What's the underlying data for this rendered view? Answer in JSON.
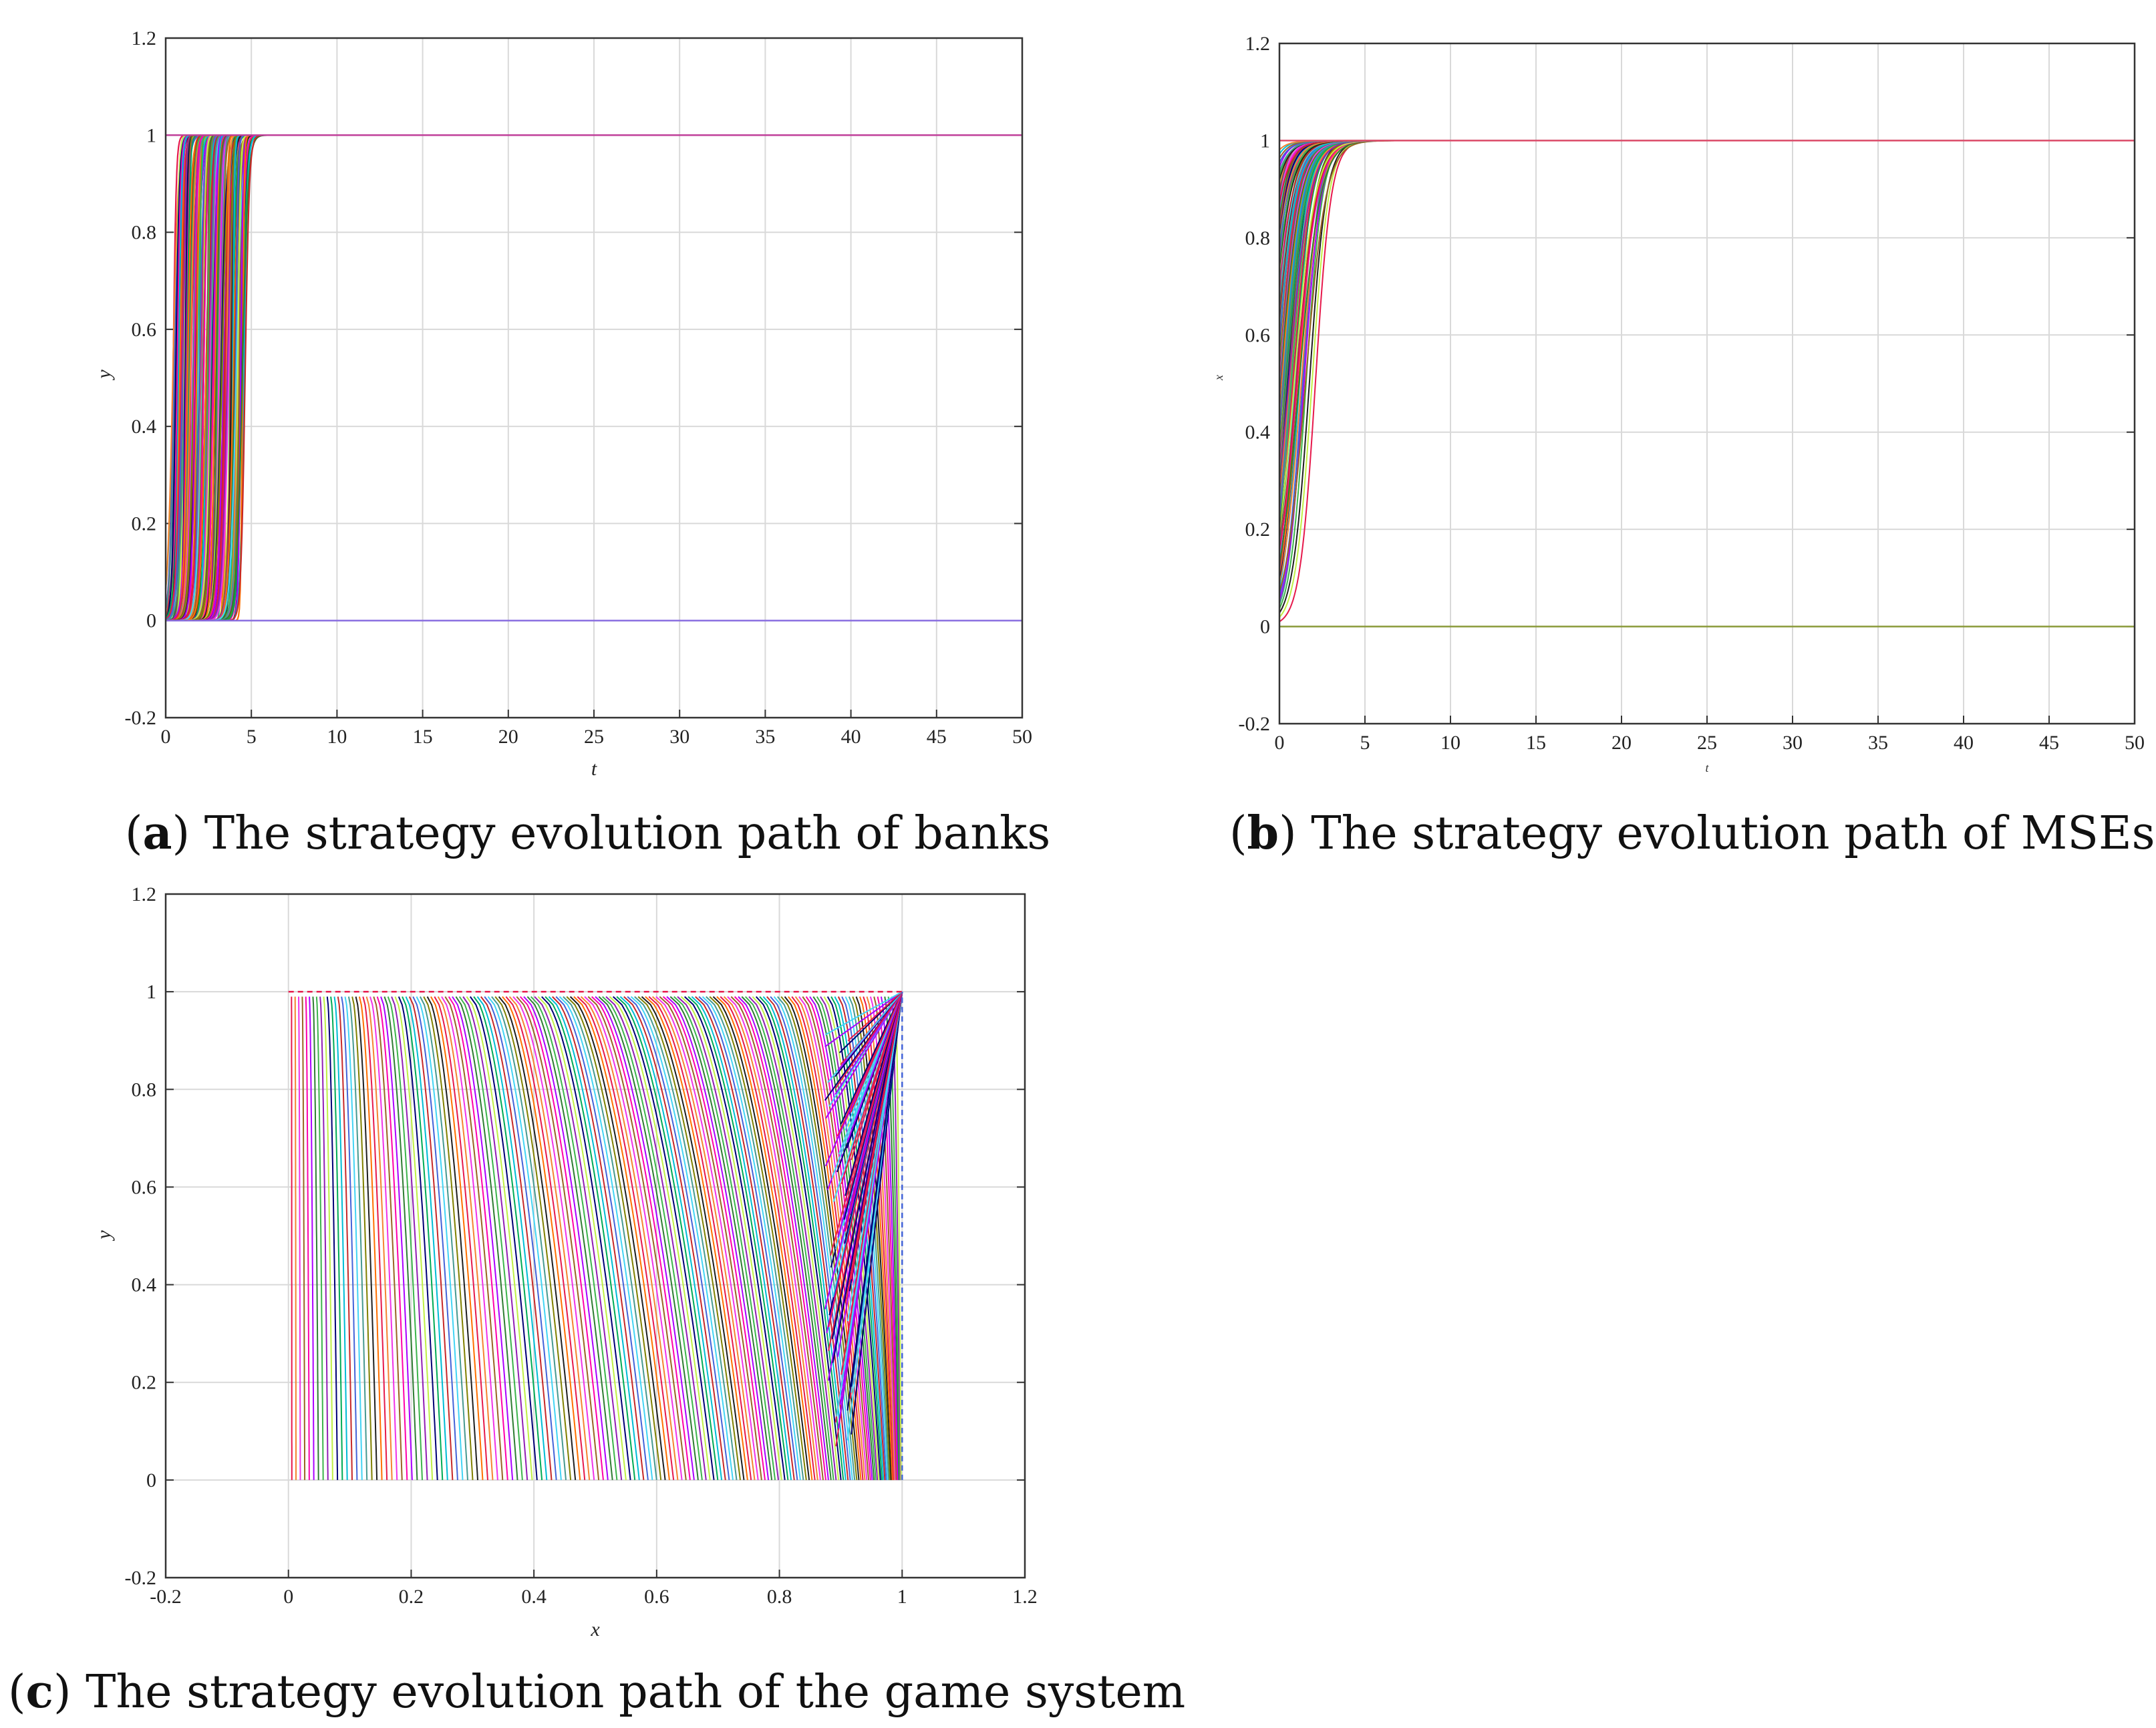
{
  "chart_data": [
    {
      "panel": "a",
      "type": "line",
      "caption_letter": "a",
      "caption_text": "The strategy evolution path of banks",
      "xlabel": "t",
      "ylabel": "y",
      "xlim": [
        0,
        50
      ],
      "ylim": [
        -0.2,
        1.2
      ],
      "xticks": [
        0,
        5,
        10,
        15,
        20,
        25,
        30,
        35,
        40,
        45,
        50
      ],
      "yticks": [
        -0.2,
        0,
        0.2,
        0.4,
        0.6,
        0.8,
        1,
        1.2
      ],
      "xtick_labels": [
        "0",
        "5",
        "10",
        "15",
        "20",
        "25",
        "30",
        "35",
        "40",
        "45",
        "50"
      ],
      "ytick_labels": [
        "-0.2",
        "0",
        "0.2",
        "0.4",
        "0.6",
        "0.8",
        "1",
        "1.2"
      ],
      "grid": true,
      "description": "Many trajectories; y switches from 0 to 1 between t≈0 and t≈5; steady states at y=1 and y=0",
      "series": [
        {
          "color": "#c0409a",
          "x": [
            0,
            50
          ],
          "y": [
            1,
            1
          ]
        },
        {
          "color": "#8a6fe0",
          "x": [
            0,
            50
          ],
          "y": [
            0,
            0
          ]
        }
      ]
    },
    {
      "panel": "b",
      "type": "line",
      "caption_letter": "b",
      "caption_text": "The strategy evolution path of MSEs",
      "xlabel": "t",
      "ylabel": "x",
      "xlim": [
        0,
        50
      ],
      "ylim": [
        -0.2,
        1.2
      ],
      "xticks": [
        0,
        5,
        10,
        15,
        20,
        25,
        30,
        35,
        40,
        45,
        50
      ],
      "yticks": [
        -0.2,
        0,
        0.2,
        0.4,
        0.6,
        0.8,
        1,
        1.2
      ],
      "xtick_labels": [
        "0",
        "5",
        "10",
        "15",
        "20",
        "25",
        "30",
        "35",
        "40",
        "45",
        "50"
      ],
      "ytick_labels": [
        "-0.2",
        "0",
        "0.2",
        "0.4",
        "0.6",
        "0.8",
        "1",
        "1.2"
      ],
      "grid": true,
      "description": "Many trajectories rising from x0 in (0,1) to 1 by t≈7; steady states at x=1 and x=0",
      "series": [
        {
          "color": "#e0506e",
          "x": [
            0,
            50
          ],
          "y": [
            1,
            1
          ]
        },
        {
          "color": "#8a9a3a",
          "x": [
            0,
            50
          ],
          "y": [
            0,
            0
          ]
        }
      ]
    },
    {
      "panel": "c",
      "type": "line",
      "caption_letter": "c",
      "caption_text": "The strategy evolution path of the game system",
      "xlabel": "x",
      "ylabel": "y",
      "xlim": [
        -0.2,
        1.2
      ],
      "ylim": [
        -0.2,
        1.2
      ],
      "xticks": [
        -0.2,
        0,
        0.2,
        0.4,
        0.6,
        0.8,
        1,
        1.2
      ],
      "yticks": [
        -0.2,
        0,
        0.2,
        0.4,
        0.6,
        0.8,
        1,
        1.2
      ],
      "xtick_labels": [
        "-0.2",
        "0",
        "0.2",
        "0.4",
        "0.6",
        "0.8",
        "1",
        "1.2"
      ],
      "ytick_labels": [
        "-0.2",
        "0",
        "0.2",
        "0.4",
        "0.6",
        "0.8",
        "1",
        "1.2"
      ],
      "grid": true,
      "description": "Phase trajectories in the unit square curving down and right toward (1,0) and (1,1); curves dip near x≈0.9"
    }
  ],
  "palette": [
    "#e6194b",
    "#3cb44b",
    "#4363d8",
    "#f58231",
    "#911eb4",
    "#42d4f4",
    "#f032e6",
    "#bfef45",
    "#469990",
    "#9a6324",
    "#000075",
    "#808000",
    "#ff00aa",
    "#00aa55",
    "#1f1f1f",
    "#aa00ff",
    "#00bcd4",
    "#ff6f00",
    "#2e7d32",
    "#c62828"
  ]
}
